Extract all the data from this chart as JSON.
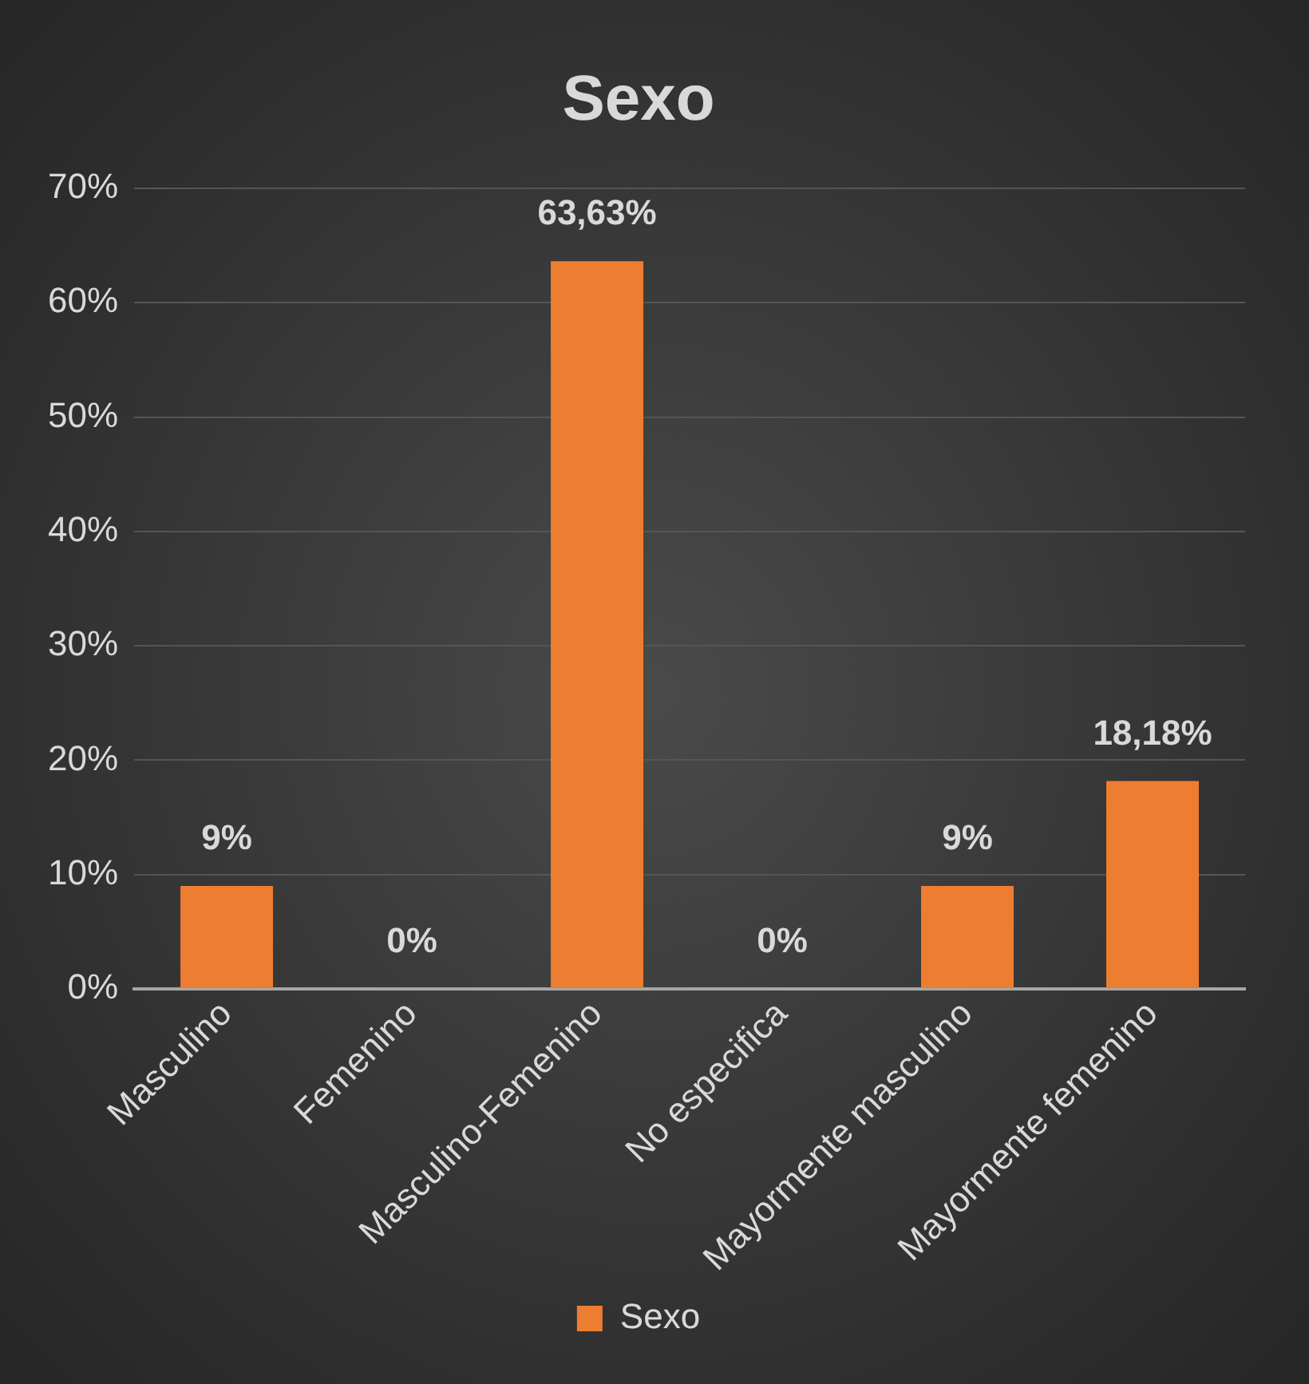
{
  "chart_data": {
    "type": "bar",
    "title": "Sexo",
    "categories": [
      "Masculino",
      "Femenino",
      "Masculino-Femenino",
      "No especifica",
      "Mayormente masculino",
      "Mayormente femenino"
    ],
    "series": [
      {
        "name": "Sexo",
        "color": "#ed7d31",
        "values": [
          9,
          0,
          63.63,
          0,
          9,
          18.18
        ],
        "value_labels": [
          "9%",
          "0%",
          "63,63%",
          "0%",
          "9%",
          "18,18%"
        ]
      }
    ],
    "ylim": [
      0,
      70
    ],
    "yticks": [
      {
        "value": 0,
        "label": "0%"
      },
      {
        "value": 10,
        "label": "10%"
      },
      {
        "value": 20,
        "label": "20%"
      },
      {
        "value": 30,
        "label": "30%"
      },
      {
        "value": 40,
        "label": "40%"
      },
      {
        "value": 50,
        "label": "50%"
      },
      {
        "value": 60,
        "label": "60%"
      },
      {
        "value": 70,
        "label": "70%"
      }
    ],
    "grid": "y",
    "legend": "bottom"
  }
}
